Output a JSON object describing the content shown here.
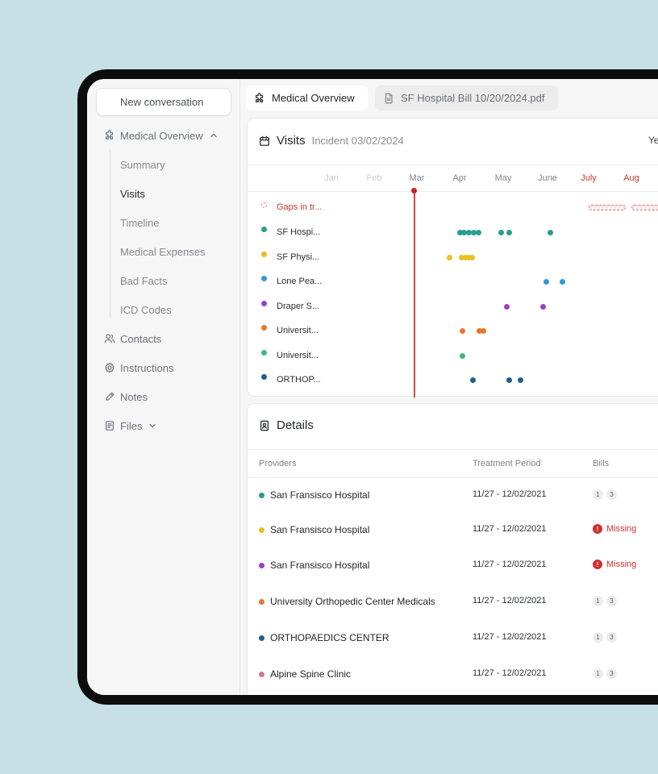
{
  "sidebar": {
    "new_conversation": "New conversation",
    "medical_overview": "Medical Overview",
    "sub_items": [
      "Summary",
      "Visits",
      "Timeline",
      "Medical Expenses",
      "Bad Facts",
      "ICD Codes"
    ],
    "active_sub": "Visits",
    "contacts": "Contacts",
    "instructions": "Instructions",
    "notes": "Notes",
    "files": "Files"
  },
  "tabs": {
    "active": "Medical Overview",
    "file": "SF Hospital Bill 10/20/2024.pdf"
  },
  "visits": {
    "title": "Visits",
    "incident": "Incident 03/02/2024",
    "year_label": "Ye",
    "months": [
      "Jan",
      "Feb",
      "Mar",
      "Apr",
      "May",
      "June",
      "July",
      "Aug"
    ],
    "rows": [
      {
        "label": "Gaps in tr...",
        "color": "#e58a8a",
        "kind": "gap"
      },
      {
        "label": "SF Hospi...",
        "color": "#2a9d8f"
      },
      {
        "label": "SF Physi...",
        "color": "#e9c020"
      },
      {
        "label": "Lone Pea...",
        "color": "#3498db"
      },
      {
        "label": "Draper S...",
        "color": "#9b3fc8"
      },
      {
        "label": "Universit...",
        "color": "#e8772e"
      },
      {
        "label": "Universit...",
        "color": "#3cb97f"
      },
      {
        "label": "ORTHOP...",
        "color": "#1f5f8b"
      }
    ]
  },
  "details": {
    "title": "Details",
    "headers": {
      "providers": "Providers",
      "period": "Treatment Period",
      "bills": "Bills"
    },
    "rows": [
      {
        "name": "San Fransisco Hospital",
        "color": "#2a9d8f",
        "period": "11/27 - 12/02/2021",
        "bills": [
          "1",
          "3"
        ],
        "missing": null
      },
      {
        "name": "San Fransisco Hospital",
        "color": "#e9c020",
        "period": "11/27 - 12/02/2021",
        "bills": [],
        "missing": "Missing"
      },
      {
        "name": "San Fransisco Hospital",
        "color": "#9b3fc8",
        "period": "11/27 - 12/02/2021",
        "bills": [],
        "missing": "Missing"
      },
      {
        "name": "University Orthopedic Center Medicals",
        "color": "#e8772e",
        "period": "11/27 - 12/02/2021",
        "bills": [
          "1",
          "3"
        ],
        "missing": null
      },
      {
        "name": "ORTHOPAEDICS CENTER",
        "color": "#1f5f8b",
        "period": "11/27 - 12/02/2021",
        "bills": [
          "1",
          "3"
        ],
        "missing": null
      },
      {
        "name": "Alpine Spine Clinic",
        "color": "#c97a94",
        "period": "11/27 - 12/02/2021",
        "bills": [
          "1",
          "3"
        ],
        "missing": null
      }
    ]
  }
}
